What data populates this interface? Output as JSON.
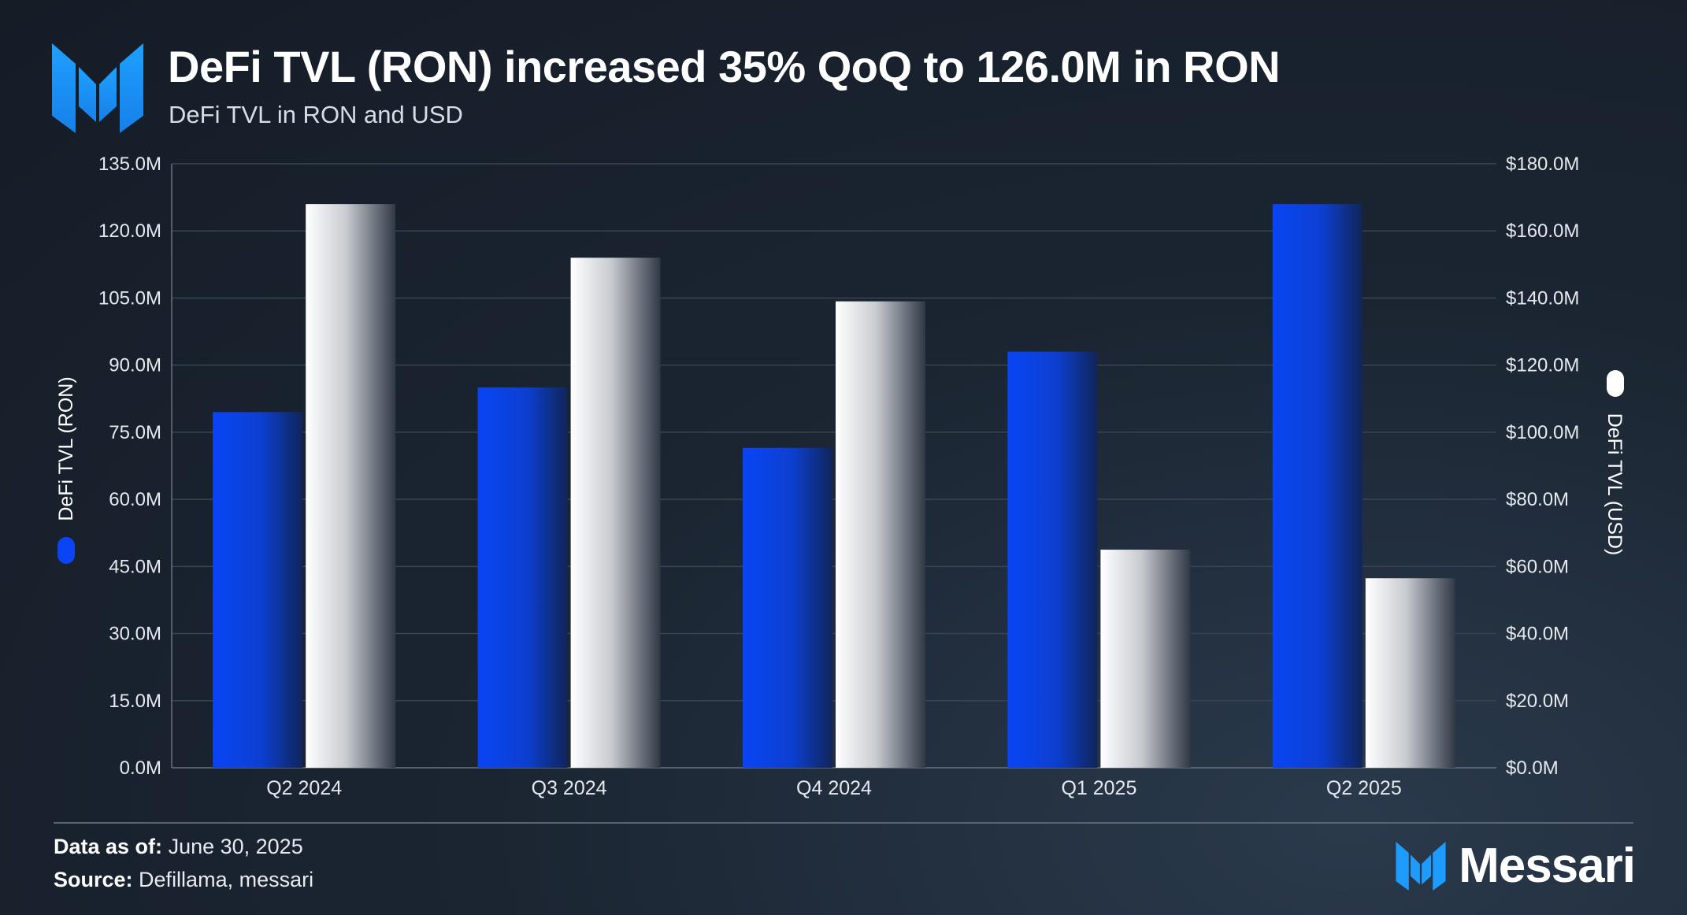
{
  "header": {
    "title": "DeFi TVL (RON) increased 35% QoQ to 126.0M in RON",
    "subtitle": "DeFi TVL in RON and USD"
  },
  "footer": {
    "date_label": "Data as of:",
    "date_value": "June 30, 2025",
    "source_label": "Source:",
    "source_value": "Defillama, messari",
    "brand": "Messari"
  },
  "colors": {
    "ron_series": "#0a4cf0",
    "usd_series": "#f2f2f2",
    "background": "#18212c",
    "gridline": "#3a4450"
  },
  "chart_data": {
    "type": "bar",
    "categories": [
      "Q2 2024",
      "Q3 2024",
      "Q4 2024",
      "Q1 2025",
      "Q2 2025"
    ],
    "series": [
      {
        "name": "DeFi TVL (RON)",
        "axis": "left",
        "values": [
          79.5,
          85.0,
          71.5,
          93.0,
          126.0
        ]
      },
      {
        "name": "DeFi TVL (USD)",
        "axis": "right",
        "values": [
          168.0,
          152.0,
          139.0,
          65.0,
          56.5
        ]
      }
    ],
    "y_left": {
      "label": "DeFi TVL (RON)",
      "ylim": [
        0,
        135
      ],
      "ticks": [
        "0.0M",
        "15.0M",
        "30.0M",
        "45.0M",
        "60.0M",
        "75.0M",
        "90.0M",
        "105.0M",
        "120.0M",
        "135.0M"
      ]
    },
    "y_right": {
      "label": "DeFi TVL (USD)",
      "ylim": [
        0,
        180
      ],
      "ticks": [
        "$0.0M",
        "$20.0M",
        "$40.0M",
        "$60.0M",
        "$80.0M",
        "$100.0M",
        "$120.0M",
        "$140.0M",
        "$160.0M",
        "$180.0M"
      ]
    },
    "grid": true,
    "legend": "axis-titles"
  }
}
